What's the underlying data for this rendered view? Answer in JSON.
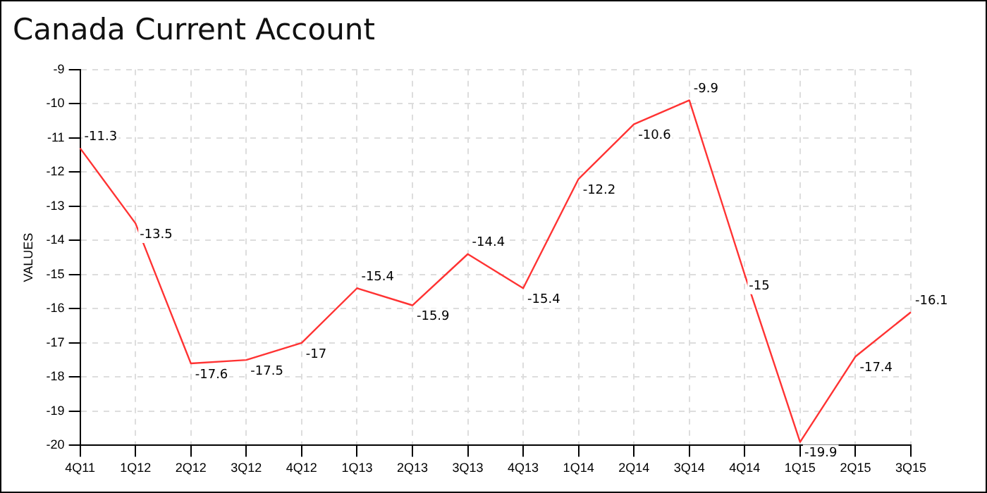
{
  "chart_data": {
    "type": "line",
    "title": "Canada Current Account",
    "ylabel": "VALUES",
    "categories": [
      "4Q11",
      "1Q12",
      "2Q12",
      "3Q12",
      "4Q12",
      "1Q13",
      "2Q13",
      "3Q13",
      "4Q13",
      "1Q14",
      "2Q14",
      "3Q14",
      "4Q14",
      "1Q15",
      "2Q15",
      "3Q15"
    ],
    "series": [
      {
        "color": "#ff3333",
        "values": [
          -11.3,
          -13.5,
          -17.6,
          -17.5,
          -17,
          -15.4,
          -15.9,
          -14.4,
          -15.4,
          -12.2,
          -10.6,
          -9.9,
          -15,
          -19.9,
          -17.4,
          -16.1
        ]
      }
    ],
    "ylim": [
      -20,
      -9
    ],
    "yticks": [
      -20,
      -19,
      -18,
      -17,
      -16,
      -15,
      -14,
      -13,
      -12,
      -11,
      -10,
      -9
    ],
    "grid": true,
    "legend": false,
    "marker": "none",
    "line_style": "solid",
    "data_labels": true
  }
}
